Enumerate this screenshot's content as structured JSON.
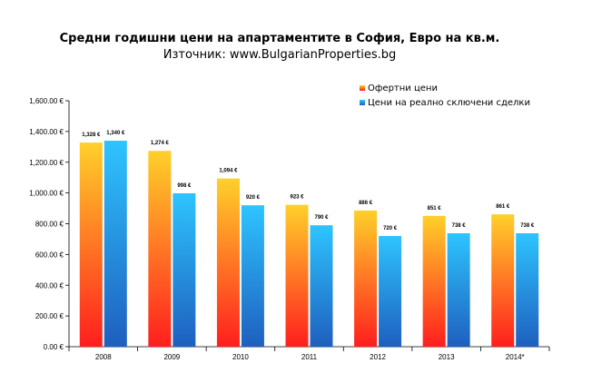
{
  "chart_data": {
    "type": "bar",
    "title": "Средни годишни цени на апартаментите в София, Евро на кв.м.",
    "subtitle": "Източник: www.BulgarianProperties.bg",
    "categories": [
      "2008",
      "2009",
      "2010",
      "2011",
      "2012",
      "2013",
      "2014*"
    ],
    "series": [
      {
        "name": "Офертни цени",
        "values": [
          1328,
          1274,
          1094,
          923,
          886,
          851,
          861
        ],
        "labels": [
          "1,328 €",
          "1,274 €",
          "1,094 €",
          "923 €",
          "886 €",
          "851 €",
          "861 €"
        ],
        "color_top": "#FFD02A",
        "color_bottom": "#FF1E1E"
      },
      {
        "name": "Цени на реално сключени сделки",
        "values": [
          1340,
          998,
          920,
          790,
          720,
          738,
          738
        ],
        "labels": [
          "1,340 €",
          "998 €",
          "920 €",
          "790 €",
          "720 €",
          "738 €",
          "738 €"
        ],
        "color_top": "#2EC4FF",
        "color_bottom": "#1E5FBE"
      }
    ],
    "ylim": [
      0,
      1600
    ],
    "yticks": [
      0,
      200,
      400,
      600,
      800,
      1000,
      1200,
      1400,
      1600
    ],
    "ytick_labels": [
      "0.00 €",
      "200.00 €",
      "400.00 €",
      "600.00 €",
      "800.00 €",
      "1,000.00 €",
      "1,200.00 €",
      "1,400.00 €",
      "1,600.00 €"
    ],
    "grid": false,
    "legend_position": "top-right",
    "xlabel": "",
    "ylabel": ""
  }
}
